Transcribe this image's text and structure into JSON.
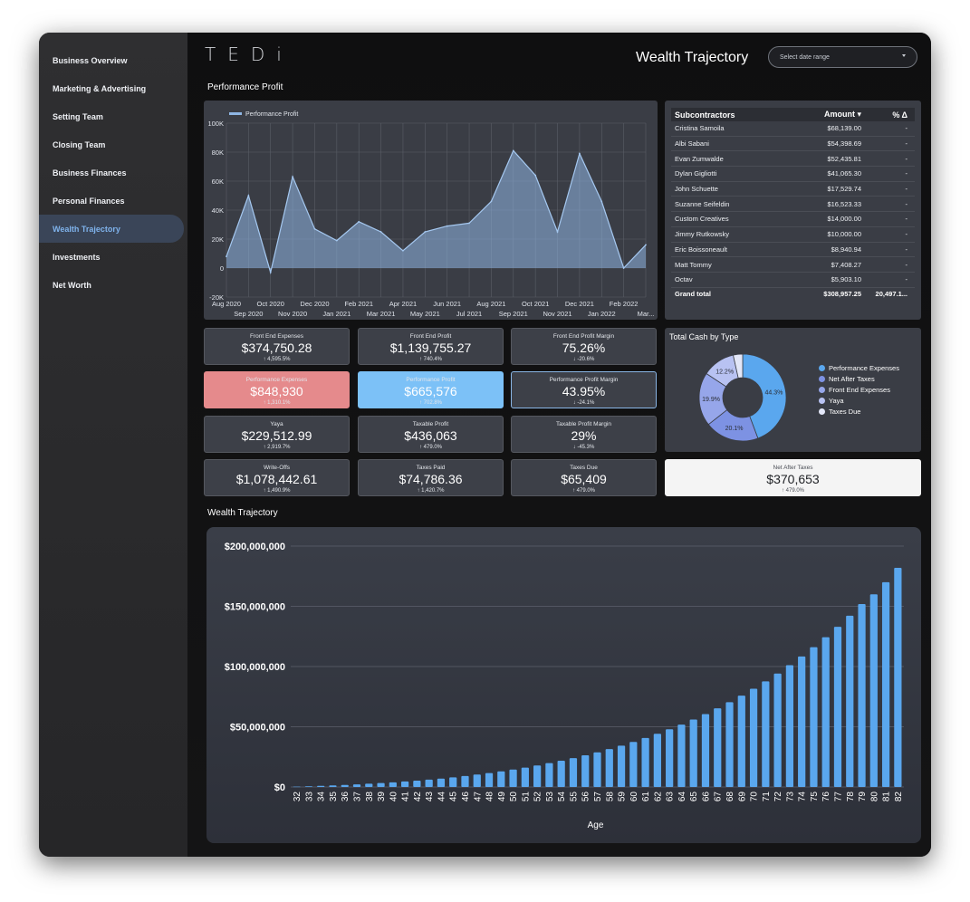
{
  "sidebar": {
    "items": [
      {
        "label": "Business Overview"
      },
      {
        "label": "Marketing & Advertising"
      },
      {
        "label": "Setting Team"
      },
      {
        "label": "Closing Team"
      },
      {
        "label": "Business Finances"
      },
      {
        "label": "Personal Finances"
      },
      {
        "label": "Wealth Trajectory",
        "active": true
      },
      {
        "label": "Investments"
      },
      {
        "label": "Net Worth"
      }
    ]
  },
  "header": {
    "logo": "TEDi",
    "title": "Wealth Trajectory",
    "date_range_placeholder": "Select date range"
  },
  "sections": {
    "performance_profit": "Performance Profit",
    "wealth_trajectory": "Wealth Trajectory"
  },
  "subcontractors": {
    "headers": {
      "name": "Subcontractors",
      "amount": "Amount ▾",
      "pct": "% Δ"
    },
    "rows": [
      {
        "name": "Cristina Samoila",
        "amount": "$68,139.00",
        "pct": "-"
      },
      {
        "name": "Albi Sabani",
        "amount": "$54,398.69",
        "pct": "-"
      },
      {
        "name": "Evan Zumwalde",
        "amount": "$52,435.81",
        "pct": "-"
      },
      {
        "name": "Dylan Gigliotti",
        "amount": "$41,065.30",
        "pct": "-"
      },
      {
        "name": "John Schuette",
        "amount": "$17,529.74",
        "pct": "-"
      },
      {
        "name": "Suzanne Seifeldin",
        "amount": "$16,523.33",
        "pct": "-"
      },
      {
        "name": "Custom Creatives",
        "amount": "$14,000.00",
        "pct": "-"
      },
      {
        "name": "Jimmy Rutkowsky",
        "amount": "$10,000.00",
        "pct": "-"
      },
      {
        "name": "Eric Boissoneault",
        "amount": "$8,940.94",
        "pct": "-"
      },
      {
        "name": "Matt Tommy",
        "amount": "$7,408.27",
        "pct": "-"
      },
      {
        "name": "Octav",
        "amount": "$5,903.10",
        "pct": "-"
      }
    ],
    "total": {
      "name": "Grand total",
      "amount": "$308,957.25",
      "pct": "20,497.1..."
    }
  },
  "kpis": {
    "front_end_expenses": {
      "label": "Front End Expenses",
      "value": "$374,750.28",
      "delta": "↑ 4,595.5%"
    },
    "front_end_profit": {
      "label": "Front End Profit",
      "value": "$1,139,755.27",
      "delta": "↑ 740.4%"
    },
    "front_end_profit_margin": {
      "label": "Front End Profit Margin",
      "value": "75.26%",
      "delta": "↓ -20.6%"
    },
    "performance_expenses": {
      "label": "Performance Expenses",
      "value": "$848,930",
      "delta": "↑ 1,310.1%"
    },
    "performance_profit": {
      "label": "Performance Profit",
      "value": "$665,576",
      "delta": "↑ 702.8%"
    },
    "performance_profit_margin": {
      "label": "Performance Profit Margin",
      "value": "43.95%",
      "delta": "↓ -24.1%"
    },
    "yaya": {
      "label": "Yaya",
      "value": "$229,512.99",
      "delta": "↑ 2,919.7%"
    },
    "taxable_profit": {
      "label": "Taxable Profit",
      "value": "$436,063",
      "delta": "↑ 479.0%"
    },
    "taxable_profit_margin": {
      "label": "Taxable Profit Margin",
      "value": "29%",
      "delta": "↓ -45.3%"
    },
    "write_offs": {
      "label": "Write-Offs",
      "value": "$1,078,442.61",
      "delta": "↑ 1,490.9%"
    },
    "taxes_paid": {
      "label": "Taxes Paid",
      "value": "$74,786.36",
      "delta": "↑ 1,420.7%"
    },
    "taxes_due": {
      "label": "Taxes Due",
      "value": "$65,409",
      "delta": "↑ 479.0%"
    },
    "net_after_taxes": {
      "label": "Net After Taxes",
      "value": "$370,653",
      "delta": "↑ 479.0%"
    }
  },
  "colors": {
    "accent": "#7cc1f7",
    "red_card": "#e58a8c",
    "bar": "#5aa7ee",
    "area": "#8fb6e4"
  },
  "chart_data": [
    {
      "type": "area",
      "legend": [
        "Performance Profit"
      ],
      "legend_placement": "top-left",
      "grid": true,
      "x": [
        "Aug 2020",
        "Sep 2020",
        "Oct 2020",
        "Nov 2020",
        "Dec 2020",
        "Jan 2021",
        "Feb 2021",
        "Mar 2021",
        "Apr 2021",
        "May 2021",
        "Jun 2021",
        "Jul 2021",
        "Aug 2021",
        "Sep 2021",
        "Oct 2021",
        "Nov 2021",
        "Dec 2021",
        "Jan 2022",
        "Feb 2022",
        "Mar..."
      ],
      "series": [
        {
          "name": "Performance Profit",
          "values": [
            8000,
            50000,
            -3000,
            63000,
            27000,
            19000,
            32000,
            25000,
            12000,
            25000,
            29000,
            31000,
            46000,
            81000,
            64000,
            25000,
            79000,
            46000,
            0,
            16000
          ]
        }
      ],
      "y_ticks": [
        "100K",
        "80K",
        "60K",
        "40K",
        "20K",
        "0",
        "-20K"
      ],
      "ylim": [
        -20000,
        100000
      ]
    },
    {
      "type": "pie",
      "title": "Total Cash by Type",
      "legend_placement": "right",
      "categories": [
        "Performance Expenses",
        "Net After Taxes",
        "Front End Expenses",
        "Yaya",
        "Taxes Due"
      ],
      "values": [
        44.3,
        20.1,
        19.9,
        12.2,
        3.5
      ],
      "labels": [
        "44.3%",
        "20.1%",
        "19.9%",
        "12.2%",
        ""
      ],
      "colors": [
        "#5aa7ee",
        "#7d92e3",
        "#96a6ea",
        "#b8c2f2",
        "#e3e7f8"
      ]
    },
    {
      "type": "bar",
      "xlabel": "Age",
      "ylabel": "",
      "grid": true,
      "y_ticks": [
        "$200,000,000",
        "$150,000,000",
        "$100,000,000",
        "$50,000,000",
        "$0"
      ],
      "ylim": [
        0,
        200000000
      ],
      "categories": [
        "32",
        "33",
        "34",
        "35",
        "36",
        "37",
        "38",
        "39",
        "40",
        "41",
        "42",
        "43",
        "44",
        "45",
        "46",
        "47",
        "48",
        "49",
        "50",
        "51",
        "52",
        "53",
        "54",
        "55",
        "56",
        "57",
        "58",
        "59",
        "60",
        "61",
        "62",
        "63",
        "64",
        "65",
        "66",
        "67",
        "68",
        "69",
        "70",
        "71",
        "72",
        "73",
        "74",
        "75",
        "76",
        "77",
        "78",
        "79",
        "80",
        "81",
        "82"
      ],
      "values": [
        300000,
        600000,
        900000,
        1300000,
        1700000,
        2200000,
        2700000,
        3300000,
        3900000,
        4600000,
        5300000,
        6100000,
        7000000,
        8000000,
        9100000,
        10300000,
        11600000,
        13000000,
        14500000,
        16100000,
        17900000,
        19800000,
        21800000,
        24000000,
        26300000,
        28800000,
        31500000,
        34300000,
        37400000,
        40700000,
        44200000,
        47900000,
        51800000,
        56000000,
        60500000,
        65300000,
        70400000,
        75800000,
        81600000,
        87700000,
        94200000,
        101100000,
        108400000,
        116100000,
        124300000,
        133000000,
        142200000,
        151900000,
        160000000,
        170000000,
        182000000
      ]
    }
  ]
}
